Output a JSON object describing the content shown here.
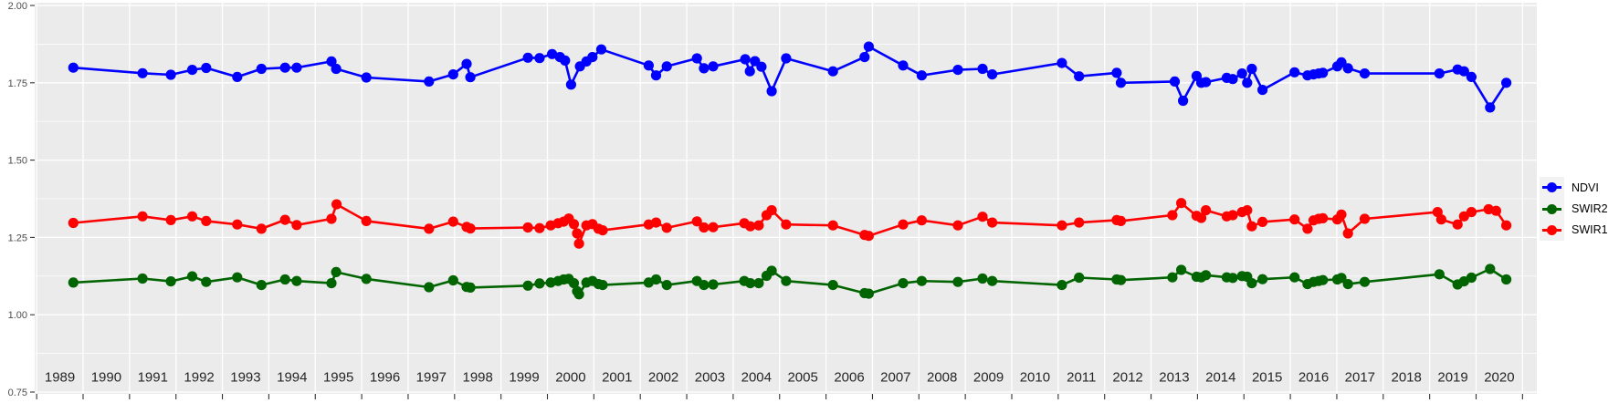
{
  "colors": {
    "page_bg": "#FFFFFF",
    "panel_bg": "#EBEBEB",
    "grid": "#FFFFFF",
    "tick": "#333333",
    "x_axis_text": "#262626",
    "y_axis_text": "#4D4D4D",
    "legend_key_bg": "#F2F2F2",
    "legend_text": "#000000"
  },
  "chart_data": {
    "type": "line",
    "title": "",
    "xlabel": "",
    "ylabel": "",
    "legend_position": "right",
    "grid": "gray panel, white major gridlines (yearly vertical; horizontal every 0.25 with minor lines every 0.125)",
    "xlim": [
      1988.96,
      2021.31
    ],
    "ylim": [
      0.75,
      2.0
    ],
    "x_tick_labels": [
      "1989",
      "1990",
      "1991",
      "1992",
      "1993",
      "1994",
      "1995",
      "1996",
      "1997",
      "1998",
      "1999",
      "2000",
      "2001",
      "2002",
      "2003",
      "2004",
      "2005",
      "2006",
      "2007",
      "2008",
      "2009",
      "2010",
      "2011",
      "2012",
      "2013",
      "2014",
      "2015",
      "2016",
      "2017",
      "2018",
      "2019",
      "2020"
    ],
    "y_tick_labels": [
      "2.00",
      "1.75",
      "1.50",
      "1.25",
      "1.00",
      "0.75"
    ],
    "series": [
      {
        "name": "NDVI",
        "color": "#0000FF",
        "x": [
          1989.79,
          1991.28,
          1991.89,
          1992.35,
          1992.65,
          1993.32,
          1993.84,
          1994.35,
          1994.6,
          1995.35,
          1995.45,
          1996.1,
          1997.45,
          1997.97,
          1998.26,
          1998.34,
          1999.58,
          1999.83,
          2000.1,
          2000.27,
          2000.38,
          2000.51,
          2000.7,
          2000.84,
          2000.97,
          2001.16,
          2002.18,
          2002.34,
          2002.57,
          2003.22,
          2003.37,
          2003.57,
          2004.26,
          2004.36,
          2004.47,
          2004.61,
          2004.83,
          2005.14,
          2006.15,
          2006.83,
          2006.92,
          2007.66,
          2008.06,
          2008.84,
          2009.37,
          2009.58,
          2011.08,
          2011.45,
          2012.26,
          2012.35,
          2013.51,
          2013.69,
          2013.98,
          2014.08,
          2014.18,
          2014.63,
          2014.76,
          2014.96,
          2015.07,
          2015.17,
          2015.4,
          2016.09,
          2016.37,
          2016.5,
          2016.61,
          2016.7,
          2017.01,
          2017.1,
          2017.24,
          2017.6,
          2019.21,
          2019.6,
          2019.74,
          2019.9,
          2020.3,
          2020.65
        ],
        "y": [
          1.799,
          1.781,
          1.776,
          1.792,
          1.798,
          1.769,
          1.795,
          1.799,
          1.799,
          1.819,
          1.795,
          1.767,
          1.754,
          1.777,
          1.811,
          1.768,
          1.831,
          1.83,
          1.843,
          1.833,
          1.822,
          1.744,
          1.803,
          1.819,
          1.833,
          1.858,
          1.806,
          1.774,
          1.803,
          1.829,
          1.797,
          1.803,
          1.826,
          1.787,
          1.82,
          1.802,
          1.723,
          1.829,
          1.787,
          1.833,
          1.867,
          1.806,
          1.774,
          1.792,
          1.795,
          1.777,
          1.814,
          1.771,
          1.782,
          1.75,
          1.754,
          1.692,
          1.772,
          1.75,
          1.752,
          1.766,
          1.762,
          1.78,
          1.75,
          1.795,
          1.727,
          1.784,
          1.774,
          1.777,
          1.78,
          1.782,
          1.803,
          1.816,
          1.797,
          1.78,
          1.78,
          1.793,
          1.787,
          1.769,
          1.67,
          1.75
        ]
      },
      {
        "name": "SWIR2",
        "color": "#006400",
        "x": [
          1989.79,
          1991.28,
          1991.89,
          1992.35,
          1992.65,
          1993.32,
          1993.84,
          1994.35,
          1994.6,
          1995.35,
          1995.45,
          1996.1,
          1997.45,
          1997.97,
          1998.26,
          1998.34,
          1999.58,
          1999.83,
          2000.07,
          2000.23,
          2000.35,
          2000.46,
          2000.57,
          2000.64,
          2000.68,
          2000.84,
          2000.97,
          2001.1,
          2001.19,
          2002.18,
          2002.34,
          2002.57,
          2003.22,
          2003.37,
          2003.57,
          2004.24,
          2004.37,
          2004.55,
          2004.72,
          2004.83,
          2005.14,
          2006.15,
          2006.83,
          2006.92,
          2007.66,
          2008.06,
          2008.84,
          2009.37,
          2009.58,
          2011.08,
          2011.45,
          2012.26,
          2012.35,
          2013.46,
          2013.65,
          2013.98,
          2014.08,
          2014.18,
          2014.63,
          2014.76,
          2014.96,
          2015.07,
          2015.17,
          2015.4,
          2016.09,
          2016.37,
          2016.5,
          2016.61,
          2016.7,
          2017.01,
          2017.1,
          2017.24,
          2017.6,
          2019.21,
          2019.6,
          2019.74,
          2019.9,
          2020.3,
          2020.65
        ],
        "y": [
          1.104,
          1.117,
          1.108,
          1.124,
          1.106,
          1.121,
          1.096,
          1.114,
          1.109,
          1.102,
          1.138,
          1.116,
          1.089,
          1.111,
          1.09,
          1.088,
          1.094,
          1.101,
          1.104,
          1.109,
          1.114,
          1.116,
          1.102,
          1.076,
          1.066,
          1.104,
          1.109,
          1.099,
          1.096,
          1.104,
          1.114,
          1.096,
          1.109,
          1.096,
          1.098,
          1.109,
          1.102,
          1.102,
          1.126,
          1.142,
          1.109,
          1.096,
          1.07,
          1.068,
          1.102,
          1.109,
          1.106,
          1.117,
          1.109,
          1.096,
          1.12,
          1.114,
          1.112,
          1.121,
          1.145,
          1.123,
          1.121,
          1.128,
          1.121,
          1.119,
          1.125,
          1.123,
          1.102,
          1.115,
          1.121,
          1.099,
          1.106,
          1.109,
          1.112,
          1.114,
          1.119,
          1.099,
          1.106,
          1.131,
          1.098,
          1.108,
          1.12,
          1.148,
          1.114
        ]
      },
      {
        "name": "SWIR1",
        "color": "#FF0000",
        "x": [
          1989.79,
          1991.28,
          1991.89,
          1992.35,
          1992.65,
          1993.32,
          1993.84,
          1994.35,
          1994.6,
          1995.35,
          1995.46,
          1996.1,
          1997.45,
          1997.97,
          1998.26,
          1998.34,
          1999.58,
          1999.83,
          2000.07,
          2000.23,
          2000.35,
          2000.46,
          2000.57,
          2000.64,
          2000.68,
          2000.84,
          2000.97,
          2001.1,
          2001.19,
          2002.18,
          2002.34,
          2002.57,
          2003.22,
          2003.37,
          2003.57,
          2004.24,
          2004.37,
          2004.55,
          2004.72,
          2004.83,
          2005.14,
          2006.15,
          2006.83,
          2006.92,
          2007.66,
          2008.06,
          2008.84,
          2009.37,
          2009.58,
          2011.08,
          2011.45,
          2012.26,
          2012.35,
          2013.46,
          2013.65,
          2013.98,
          2014.08,
          2014.18,
          2014.63,
          2014.76,
          2014.96,
          2015.07,
          2015.17,
          2015.4,
          2016.09,
          2016.37,
          2016.5,
          2016.61,
          2016.7,
          2017.01,
          2017.1,
          2017.24,
          2017.6,
          2019.17,
          2019.25,
          2019.6,
          2019.74,
          2019.9,
          2020.27,
          2020.43,
          2020.65
        ],
        "y": [
          1.297,
          1.318,
          1.306,
          1.318,
          1.303,
          1.292,
          1.278,
          1.307,
          1.29,
          1.31,
          1.357,
          1.303,
          1.278,
          1.301,
          1.284,
          1.279,
          1.282,
          1.28,
          1.289,
          1.296,
          1.301,
          1.311,
          1.293,
          1.263,
          1.23,
          1.289,
          1.293,
          1.278,
          1.273,
          1.292,
          1.298,
          1.281,
          1.302,
          1.282,
          1.283,
          1.296,
          1.286,
          1.289,
          1.322,
          1.338,
          1.292,
          1.289,
          1.258,
          1.255,
          1.292,
          1.305,
          1.289,
          1.317,
          1.298,
          1.289,
          1.298,
          1.306,
          1.303,
          1.322,
          1.361,
          1.32,
          1.313,
          1.338,
          1.318,
          1.322,
          1.332,
          1.338,
          1.286,
          1.3,
          1.308,
          1.278,
          1.305,
          1.31,
          1.312,
          1.308,
          1.324,
          1.263,
          1.31,
          1.332,
          1.308,
          1.292,
          1.318,
          1.332,
          1.341,
          1.336,
          1.289
        ]
      }
    ]
  },
  "legend": {
    "items": [
      {
        "label": "NDVI",
        "color": "#0000FF"
      },
      {
        "label": "SWIR2",
        "color": "#006400"
      },
      {
        "label": "SWIR1",
        "color": "#FF0000"
      }
    ]
  }
}
